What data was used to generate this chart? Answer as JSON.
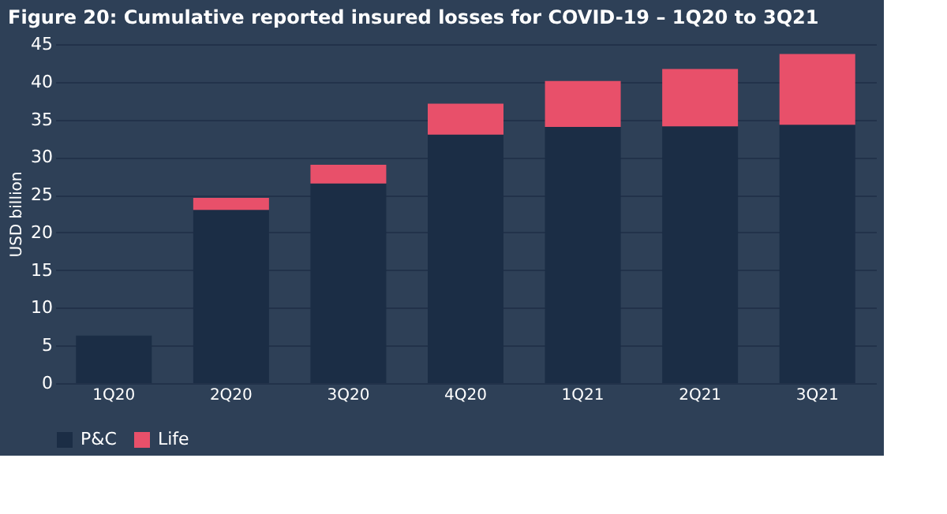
{
  "chart_data": {
    "type": "bar",
    "stacked": true,
    "title": "Figure 20: Cumulative reported insured losses for COVID-19 – 1Q20 to 3Q21",
    "ylabel": "USD billion",
    "categories": [
      "1Q20",
      "2Q20",
      "3Q20",
      "4Q20",
      "1Q21",
      "2Q21",
      "3Q21"
    ],
    "series": [
      {
        "name": "P&C",
        "color": "#1b2d45",
        "values": [
          6.3,
          23.0,
          26.5,
          33.0,
          34.0,
          34.1,
          34.3
        ]
      },
      {
        "name": "Life",
        "color": "#e8506a",
        "values": [
          0,
          1.6,
          2.5,
          4.1,
          6.1,
          7.6,
          9.4
        ]
      }
    ],
    "ylim": [
      0,
      45
    ],
    "yticks": [
      0,
      5,
      10,
      15,
      20,
      25,
      30,
      35,
      40,
      45
    ],
    "grid": "y",
    "legend": "bottom"
  }
}
